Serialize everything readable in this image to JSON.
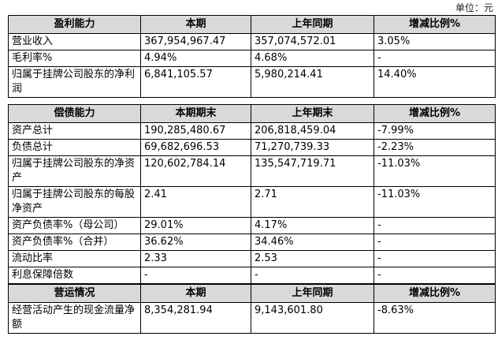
{
  "unit": "单位：元",
  "sections": [
    {
      "header": [
        "盈利能力",
        "本期",
        "上年同期",
        "增减比例%"
      ],
      "rows": [
        [
          "营业收入",
          "367,954,967.47",
          "357,074,572.01",
          "3.05%"
        ],
        [
          "毛利率%",
          "4.94%",
          "4.68%",
          "-"
        ],
        [
          "归属于挂牌公司股东的净利润",
          "6,841,105.57",
          "5,980,214.41",
          "14.40%"
        ]
      ]
    },
    {
      "header": [
        "偿债能力",
        "本期期末",
        "上年期末",
        "增减比例%"
      ],
      "rows": [
        [
          "资产总计",
          "190,285,480.67",
          "206,818,459.04",
          "-7.99%"
        ],
        [
          "负债总计",
          "69,682,696.53",
          "71,270,739.33",
          "-2.23%"
        ],
        [
          "归属于挂牌公司股东的净资产",
          "120,602,784.14",
          "135,547,719.71",
          "-11.03%"
        ],
        [
          "归属于挂牌公司股东的每股净资产",
          "2.41",
          "2.71",
          "-11.03%"
        ],
        [
          "资产负债率%（母公司）",
          "29.01%",
          "4.17%",
          "-"
        ],
        [
          "资产负债率%（合并）",
          "36.62%",
          "34.46%",
          "-"
        ],
        [
          "流动比率",
          "2.33",
          "2.53",
          "-"
        ],
        [
          "利息保障倍数",
          "-",
          "-",
          "-"
        ]
      ]
    },
    {
      "header": [
        "营运情况",
        "本期",
        "上年同期",
        "增减比例%"
      ],
      "rows": [
        [
          "经营活动产生的现金流量净额",
          "8,354,281.94",
          "9,143,601.80",
          "-8.63%"
        ]
      ]
    }
  ]
}
